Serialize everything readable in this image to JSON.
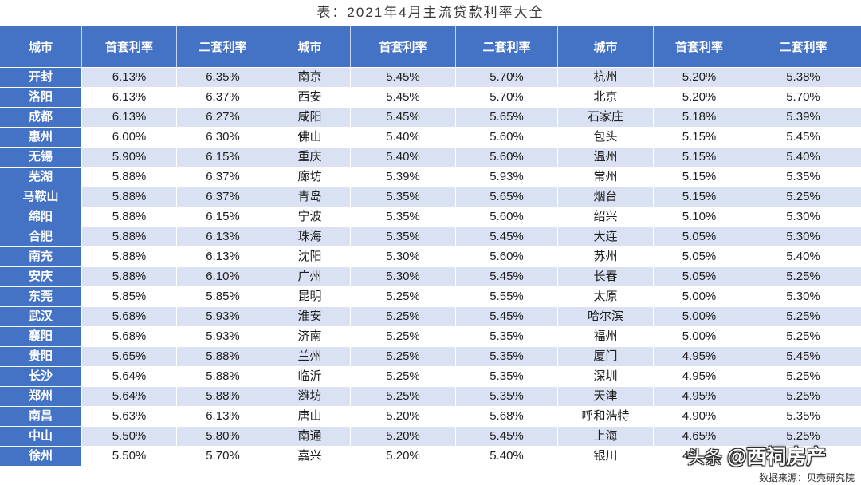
{
  "chart_data": {
    "type": "table",
    "title": "表：2021年4月主流贷款利率大全",
    "columns": [
      "城市",
      "首套利率",
      "二套利率",
      "城市",
      "首套利率",
      "二套利率",
      "城市",
      "首套利率",
      "二套利率"
    ],
    "rows": [
      [
        "开封",
        "6.13%",
        "6.35%",
        "南京",
        "5.45%",
        "5.70%",
        "杭州",
        "5.20%",
        "5.38%"
      ],
      [
        "洛阳",
        "6.13%",
        "6.37%",
        "西安",
        "5.45%",
        "5.70%",
        "北京",
        "5.20%",
        "5.70%"
      ],
      [
        "成都",
        "6.13%",
        "6.27%",
        "咸阳",
        "5.45%",
        "5.65%",
        "石家庄",
        "5.18%",
        "5.39%"
      ],
      [
        "惠州",
        "6.00%",
        "6.30%",
        "佛山",
        "5.40%",
        "5.60%",
        "包头",
        "5.15%",
        "5.45%"
      ],
      [
        "无锡",
        "5.90%",
        "6.15%",
        "重庆",
        "5.40%",
        "5.60%",
        "温州",
        "5.15%",
        "5.40%"
      ],
      [
        "芜湖",
        "5.88%",
        "6.37%",
        "廊坊",
        "5.39%",
        "5.93%",
        "常州",
        "5.15%",
        "5.35%"
      ],
      [
        "马鞍山",
        "5.88%",
        "6.37%",
        "青岛",
        "5.35%",
        "5.65%",
        "烟台",
        "5.15%",
        "5.25%"
      ],
      [
        "绵阳",
        "5.88%",
        "6.15%",
        "宁波",
        "5.35%",
        "5.60%",
        "绍兴",
        "5.10%",
        "5.30%"
      ],
      [
        "合肥",
        "5.88%",
        "6.13%",
        "珠海",
        "5.35%",
        "5.45%",
        "大连",
        "5.05%",
        "5.30%"
      ],
      [
        "南充",
        "5.88%",
        "6.13%",
        "沈阳",
        "5.30%",
        "5.60%",
        "苏州",
        "5.05%",
        "5.40%"
      ],
      [
        "安庆",
        "5.88%",
        "6.10%",
        "广州",
        "5.30%",
        "5.45%",
        "长春",
        "5.05%",
        "5.25%"
      ],
      [
        "东莞",
        "5.85%",
        "5.85%",
        "昆明",
        "5.25%",
        "5.55%",
        "太原",
        "5.00%",
        "5.30%"
      ],
      [
        "武汉",
        "5.68%",
        "5.93%",
        "淮安",
        "5.25%",
        "5.45%",
        "哈尔滨",
        "5.00%",
        "5.25%"
      ],
      [
        "襄阳",
        "5.68%",
        "5.93%",
        "济南",
        "5.25%",
        "5.35%",
        "福州",
        "5.00%",
        "5.25%"
      ],
      [
        "贵阳",
        "5.65%",
        "5.88%",
        "兰州",
        "5.25%",
        "5.35%",
        "厦门",
        "4.95%",
        "5.45%"
      ],
      [
        "长沙",
        "5.64%",
        "5.88%",
        "临沂",
        "5.25%",
        "5.35%",
        "深圳",
        "4.95%",
        "5.25%"
      ],
      [
        "郑州",
        "5.64%",
        "5.88%",
        "潍坊",
        "5.25%",
        "5.35%",
        "天津",
        "4.95%",
        "5.25%"
      ],
      [
        "南昌",
        "5.63%",
        "6.13%",
        "唐山",
        "5.20%",
        "5.68%",
        "呼和浩特",
        "4.90%",
        "5.35%"
      ],
      [
        "中山",
        "5.50%",
        "5.80%",
        "南通",
        "5.20%",
        "5.45%",
        "上海",
        "4.65%",
        "5.25%"
      ],
      [
        "徐州",
        "5.50%",
        "5.70%",
        "嘉兴",
        "5.20%",
        "5.40%",
        "银川",
        "4",
        ""
      ]
    ]
  },
  "source": "数据来源：贝壳研究院",
  "watermark": {
    "platform": "头条",
    "handle": "@西祠房产"
  },
  "colors": {
    "header": "#4472c4",
    "stripe": "#d9e1f2",
    "plain": "#ffffff"
  }
}
